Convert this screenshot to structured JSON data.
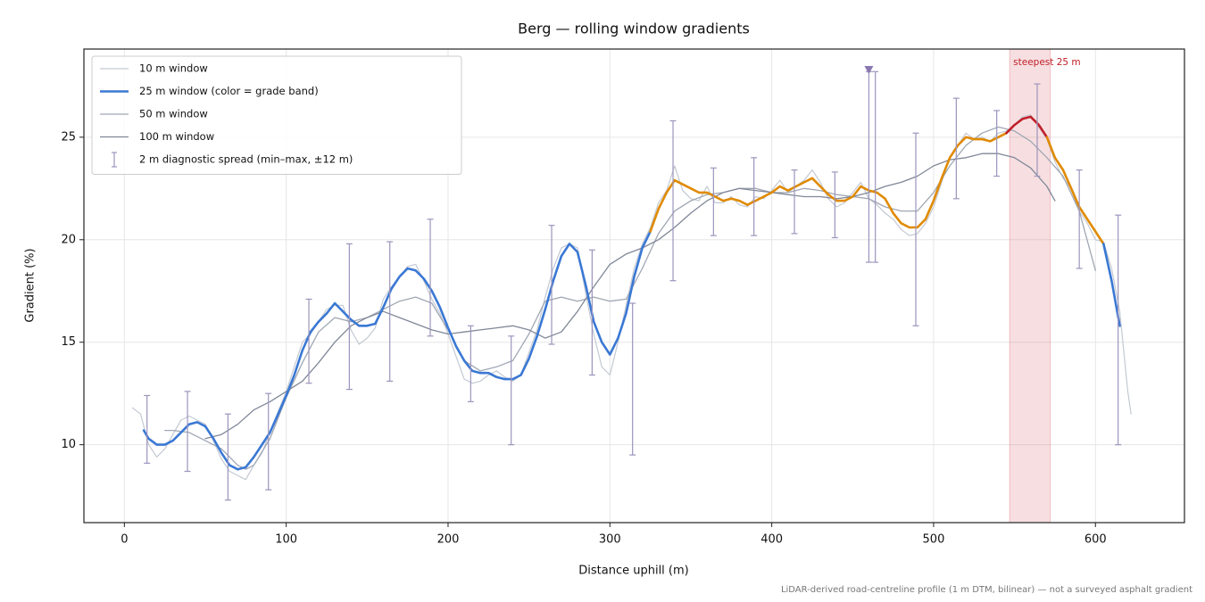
{
  "chart_data": {
    "type": "line",
    "title": "Berg — rolling window gradients",
    "xlabel": "Distance uphill (m)",
    "ylabel": "Gradient (%)",
    "footnote": "LiDAR-derived road-centreline profile (1 m DTM, bilinear) — not a surveyed asphalt gradient",
    "xlim": [
      -25,
      655
    ],
    "ylim": [
      6.2,
      29.3
    ],
    "xticks": [
      0,
      100,
      200,
      300,
      400,
      500,
      600
    ],
    "yticks": [
      10,
      15,
      20,
      25
    ],
    "grid": true,
    "legend": "upper left",
    "series": [
      {
        "name": "10 m window",
        "color": "#c3c9d3",
        "width": 1.2,
        "x": [
          5,
          10,
          15,
          20,
          25,
          30,
          35,
          40,
          45,
          50,
          55,
          60,
          65,
          70,
          75,
          80,
          85,
          90,
          95,
          100,
          105,
          110,
          115,
          120,
          125,
          130,
          135,
          140,
          145,
          150,
          155,
          160,
          165,
          170,
          175,
          180,
          185,
          190,
          195,
          200,
          205,
          210,
          215,
          220,
          225,
          230,
          235,
          240,
          245,
          250,
          255,
          260,
          265,
          270,
          275,
          280,
          285,
          290,
          295,
          300,
          305,
          310,
          315,
          320,
          325,
          330,
          335,
          340,
          345,
          350,
          355,
          360,
          365,
          370,
          375,
          380,
          385,
          390,
          395,
          400,
          405,
          410,
          415,
          420,
          425,
          430,
          435,
          440,
          445,
          450,
          455,
          460,
          465,
          470,
          475,
          480,
          485,
          490,
          495,
          500,
          505,
          510,
          515,
          520,
          525,
          530,
          535,
          540,
          545,
          550,
          555,
          560,
          565,
          570,
          575,
          580,
          585,
          590,
          595,
          600,
          605,
          610,
          615,
          620,
          622
        ],
        "values": [
          11.8,
          11.5,
          10.0,
          9.4,
          9.8,
          10.5,
          11.2,
          11.4,
          11.2,
          11.0,
          10.2,
          9.3,
          8.7,
          8.5,
          8.3,
          9.0,
          9.6,
          10.6,
          11.6,
          12.6,
          13.8,
          15.0,
          15.4,
          16.0,
          16.6,
          16.8,
          16.8,
          15.6,
          14.9,
          15.2,
          15.7,
          17.1,
          17.7,
          18.2,
          18.7,
          18.8,
          18.0,
          17.1,
          16.4,
          15.4,
          14.3,
          13.2,
          13.0,
          13.1,
          13.4,
          13.6,
          13.3,
          13.1,
          13.4,
          14.5,
          15.6,
          17.2,
          18.6,
          19.6,
          19.8,
          19.6,
          17.4,
          15.4,
          13.8,
          13.4,
          15.0,
          16.8,
          18.6,
          19.8,
          20.6,
          21.8,
          22.4,
          23.6,
          22.4,
          22.0,
          21.9,
          22.6,
          21.8,
          21.8,
          22.1,
          21.7,
          21.6,
          22.1,
          22.0,
          22.4,
          22.9,
          22.3,
          22.6,
          22.9,
          23.4,
          22.8,
          22.0,
          21.6,
          21.8,
          22.3,
          22.8,
          22.0,
          21.7,
          21.3,
          21.0,
          20.5,
          20.2,
          20.3,
          20.8,
          21.6,
          22.8,
          24.0,
          24.6,
          25.2,
          24.9,
          25.0,
          24.8,
          25.2,
          25.3,
          25.6,
          26.0,
          26.1,
          25.5,
          24.9,
          23.8,
          23.0,
          22.5,
          21.4,
          20.8,
          20.0,
          19.9,
          18.6,
          16.5,
          12.6,
          11.5
        ]
      },
      {
        "name": "25 m window (color = grade band)",
        "color": "#3a78d4",
        "width": 2.6,
        "bands": [
          {
            "above": 20,
            "color": "#e08a00"
          },
          {
            "above": 25,
            "color": "#c0202a"
          }
        ],
        "x": [
          12,
          15,
          20,
          25,
          30,
          35,
          40,
          45,
          50,
          55,
          60,
          65,
          70,
          75,
          80,
          85,
          90,
          95,
          100,
          105,
          110,
          115,
          120,
          125,
          130,
          135,
          140,
          145,
          150,
          155,
          160,
          165,
          170,
          175,
          180,
          185,
          190,
          195,
          200,
          205,
          210,
          215,
          220,
          225,
          230,
          235,
          240,
          245,
          250,
          255,
          260,
          265,
          270,
          275,
          280,
          285,
          290,
          295,
          300,
          305,
          310,
          315,
          320,
          325,
          330,
          335,
          340,
          345,
          350,
          355,
          360,
          365,
          370,
          375,
          380,
          385,
          390,
          395,
          400,
          405,
          410,
          415,
          420,
          425,
          430,
          435,
          440,
          445,
          450,
          455,
          460,
          465,
          470,
          475,
          480,
          485,
          490,
          495,
          500,
          505,
          510,
          515,
          520,
          525,
          530,
          535,
          540,
          545,
          550,
          555,
          560,
          565,
          570,
          575,
          580,
          585,
          590,
          595,
          600,
          605,
          610,
          615
        ],
        "values": [
          10.7,
          10.3,
          10.0,
          10.0,
          10.2,
          10.6,
          11.0,
          11.1,
          10.9,
          10.3,
          9.6,
          9.0,
          8.8,
          8.9,
          9.4,
          10.0,
          10.6,
          11.5,
          12.4,
          13.4,
          14.6,
          15.5,
          16.0,
          16.4,
          16.9,
          16.5,
          16.1,
          15.8,
          15.8,
          15.9,
          16.7,
          17.6,
          18.2,
          18.6,
          18.5,
          18.1,
          17.5,
          16.7,
          15.7,
          14.8,
          14.1,
          13.6,
          13.5,
          13.5,
          13.3,
          13.2,
          13.2,
          13.4,
          14.2,
          15.3,
          16.6,
          18.0,
          19.2,
          19.8,
          19.4,
          17.8,
          16.0,
          15.0,
          14.4,
          15.2,
          16.4,
          18.2,
          19.6,
          20.4,
          21.5,
          22.3,
          22.9,
          22.7,
          22.5,
          22.3,
          22.3,
          22.1,
          21.9,
          22.0,
          21.9,
          21.7,
          21.9,
          22.1,
          22.3,
          22.6,
          22.4,
          22.6,
          22.8,
          23.0,
          22.6,
          22.2,
          21.9,
          21.9,
          22.1,
          22.6,
          22.4,
          22.3,
          22.0,
          21.3,
          20.8,
          20.6,
          20.6,
          21.0,
          21.9,
          23.0,
          24.0,
          24.6,
          25.0,
          24.9,
          24.9,
          24.8,
          25.0,
          25.2,
          25.6,
          25.9,
          26.0,
          25.6,
          25.0,
          24.0,
          23.4,
          22.5,
          21.6,
          21.0,
          20.4,
          19.8,
          18.0,
          15.8
        ]
      },
      {
        "name": "50 m window",
        "color": "#a0a7b3",
        "width": 1.3,
        "x": [
          25,
          30,
          40,
          50,
          60,
          65,
          70,
          75,
          80,
          90,
          100,
          110,
          120,
          130,
          140,
          150,
          160,
          170,
          180,
          190,
          200,
          210,
          220,
          230,
          240,
          250,
          260,
          270,
          280,
          290,
          300,
          310,
          320,
          330,
          340,
          350,
          360,
          370,
          380,
          390,
          400,
          410,
          420,
          430,
          440,
          450,
          460,
          470,
          480,
          490,
          500,
          510,
          520,
          530,
          540,
          550,
          560,
          570,
          580,
          590,
          600
        ],
        "values": [
          10.7,
          10.7,
          10.6,
          10.2,
          9.8,
          9.4,
          9.0,
          8.8,
          9.0,
          10.3,
          12.3,
          14.0,
          15.5,
          16.2,
          16.0,
          16.2,
          16.6,
          17.0,
          17.2,
          16.9,
          15.6,
          14.1,
          13.6,
          13.8,
          14.1,
          15.4,
          17.0,
          17.2,
          17.0,
          17.2,
          17.0,
          17.1,
          18.6,
          20.3,
          21.4,
          21.9,
          22.2,
          22.3,
          22.5,
          22.5,
          22.3,
          22.3,
          22.5,
          22.4,
          22.2,
          22.1,
          22.0,
          21.6,
          21.4,
          21.4,
          22.3,
          23.6,
          24.6,
          25.2,
          25.5,
          25.3,
          24.8,
          24.0,
          23.1,
          21.4,
          18.5
        ]
      },
      {
        "name": "100 m window",
        "color": "#808898",
        "width": 1.3,
        "x": [
          50,
          60,
          70,
          80,
          90,
          100,
          110,
          120,
          130,
          140,
          150,
          160,
          170,
          180,
          190,
          200,
          210,
          220,
          230,
          240,
          250,
          260,
          270,
          280,
          290,
          300,
          310,
          320,
          330,
          340,
          350,
          360,
          370,
          380,
          390,
          400,
          410,
          420,
          430,
          440,
          450,
          460,
          470,
          480,
          490,
          500,
          510,
          520,
          530,
          540,
          550,
          560,
          570,
          575
        ],
        "values": [
          10.3,
          10.5,
          11.0,
          11.7,
          12.1,
          12.6,
          13.1,
          14.0,
          15.0,
          15.8,
          16.2,
          16.5,
          16.2,
          15.9,
          15.6,
          15.4,
          15.5,
          15.6,
          15.7,
          15.8,
          15.6,
          15.2,
          15.5,
          16.5,
          17.7,
          18.8,
          19.3,
          19.6,
          20.0,
          20.6,
          21.3,
          21.9,
          22.3,
          22.5,
          22.4,
          22.3,
          22.2,
          22.1,
          22.1,
          22.0,
          22.1,
          22.3,
          22.6,
          22.8,
          23.1,
          23.6,
          23.9,
          24.0,
          24.2,
          24.2,
          24.0,
          23.5,
          22.6,
          21.9
        ]
      }
    ],
    "errorbars": {
      "name": "2 m diagnostic spread (min–max, ±12 m)",
      "color": "#9c94bc",
      "x": [
        14,
        39,
        64,
        89,
        114,
        139,
        164,
        189,
        214,
        239,
        264,
        289,
        314,
        339,
        364,
        389,
        414,
        439,
        460,
        464,
        489,
        514,
        539,
        564,
        590,
        614
      ],
      "low": [
        9.1,
        8.7,
        7.3,
        7.8,
        13.0,
        12.7,
        13.1,
        15.3,
        12.1,
        10.0,
        14.9,
        13.4,
        9.5,
        18.0,
        20.2,
        20.2,
        20.3,
        20.1,
        18.9,
        18.9,
        15.8,
        22.0,
        23.1,
        23.1,
        18.6,
        10.0
      ],
      "high": [
        12.4,
        12.6,
        11.5,
        12.5,
        17.1,
        19.8,
        19.9,
        21.0,
        15.8,
        15.3,
        20.7,
        19.5,
        16.9,
        25.8,
        23.5,
        24.0,
        23.4,
        23.3,
        28.2,
        28.2,
        25.2,
        26.9,
        26.3,
        27.6,
        23.4,
        21.2
      ]
    },
    "highlight": {
      "xrange": [
        547,
        572
      ],
      "color": "#d9606a",
      "label": "steepest 25 m",
      "label_color": "#c0202a"
    },
    "marker": {
      "x": 460,
      "y": 28.3,
      "color": "#8a78b0"
    }
  }
}
